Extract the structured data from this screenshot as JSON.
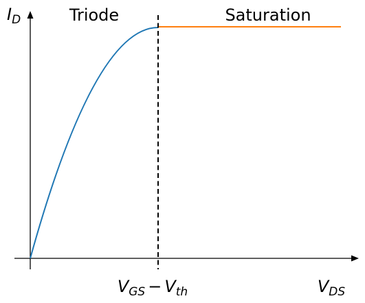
{
  "diagram": {
    "regions": {
      "triode_label": "Triode",
      "saturation_label": "Saturation"
    },
    "y_axis_label": {
      "main": "I",
      "sub": "D"
    },
    "x_axis_label": {
      "main": "V",
      "sub": "DS"
    },
    "threshold_label": {
      "v1": "V",
      "v1_sub": "GS",
      "op": "−",
      "v2": "V",
      "v2_sub": "th"
    },
    "colors": {
      "triode_curve": "#1f77b4",
      "saturation_line": "#ff7f0e",
      "axes": "#000000",
      "divider": "#000000"
    }
  }
}
